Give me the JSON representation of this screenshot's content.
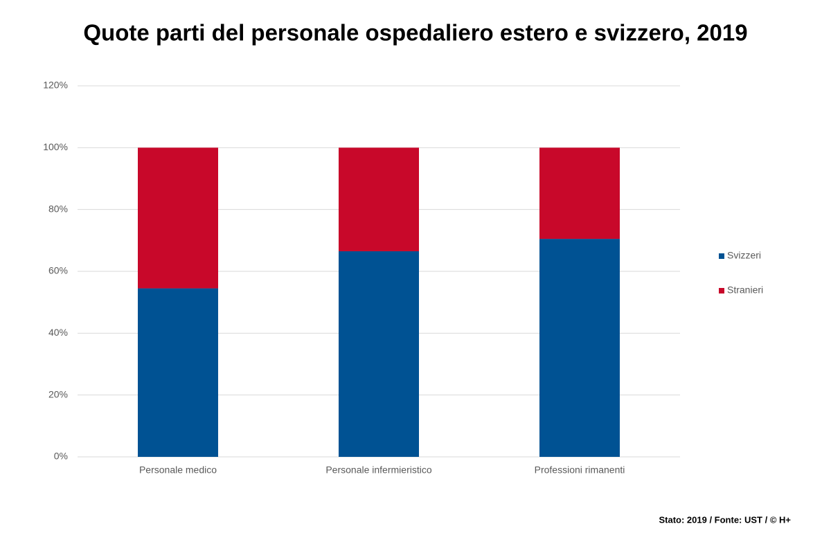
{
  "chart_data": {
    "type": "stacked_bar",
    "title": "Quote parti del personale ospedaliero estero e svizzero, 2019",
    "categories": [
      "Personale medico",
      "Personale infermieristico",
      "Professioni rimanenti"
    ],
    "series": [
      {
        "name": "Svizzeri",
        "color": "#005293",
        "values": [
          54.5,
          66.5,
          70.5
        ]
      },
      {
        "name": "Stranieri",
        "color": "#c8082a",
        "values": [
          45.5,
          33.5,
          29.5
        ]
      }
    ],
    "ylim": [
      0,
      120
    ],
    "yticks": [
      {
        "value": 0,
        "label": "0%"
      },
      {
        "value": 20,
        "label": "20%"
      },
      {
        "value": 40,
        "label": "40%"
      },
      {
        "value": 60,
        "label": "60%"
      },
      {
        "value": 80,
        "label": "80%"
      },
      {
        "value": 100,
        "label": "100%"
      },
      {
        "value": 120,
        "label": "120%"
      }
    ],
    "grid": true,
    "legend": "right",
    "footnote": "Stato: 2019 / Fonte: UST / © H+"
  }
}
